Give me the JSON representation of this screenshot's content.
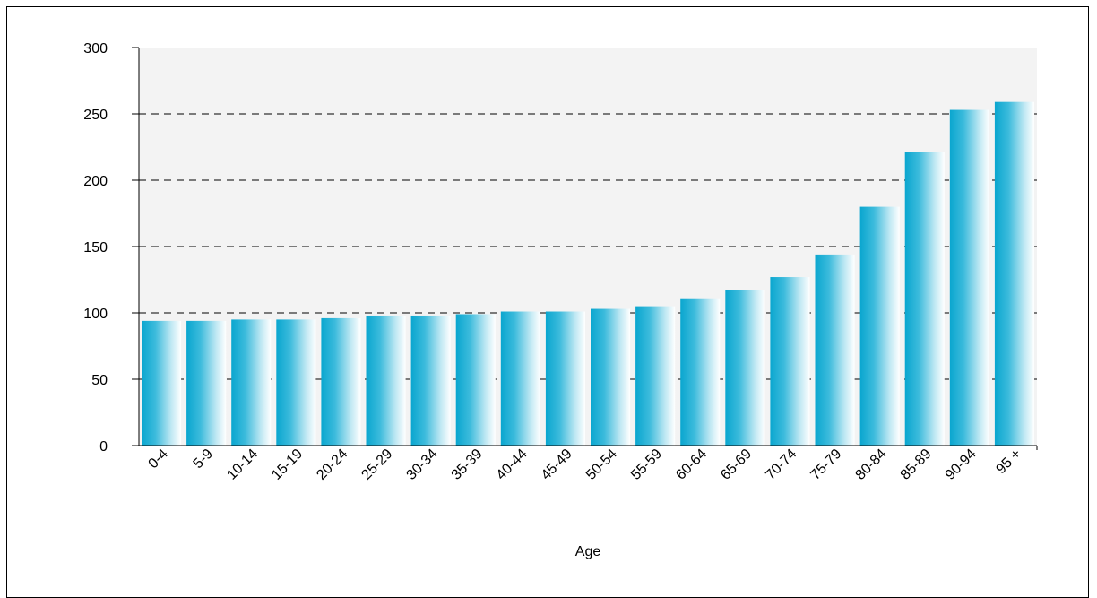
{
  "chart_data": {
    "type": "bar",
    "title": "",
    "xlabel": "Age",
    "ylabel": "",
    "ylim": [
      0,
      300
    ],
    "yticks": [
      0,
      50,
      100,
      150,
      200,
      250,
      300
    ],
    "grid": "horizontal-dashed",
    "categories": [
      "0-4",
      "5-9",
      "10-14",
      "15-19",
      "20-24",
      "25-29",
      "30-34",
      "35-39",
      "40-44",
      "45-49",
      "50-54",
      "55-59",
      "60-64",
      "65-69",
      "70-74",
      "75-79",
      "80-84",
      "85-89",
      "90-94",
      "95 +"
    ],
    "values": [
      94,
      94,
      95,
      95,
      96,
      98,
      98,
      99,
      101,
      101,
      103,
      105,
      111,
      117,
      127,
      144,
      180,
      221,
      253,
      259
    ],
    "colors": {
      "bar_dark": "#0aa6cf",
      "bar_light": "#ffffff",
      "plot_bg": "#f3f3f3"
    }
  }
}
